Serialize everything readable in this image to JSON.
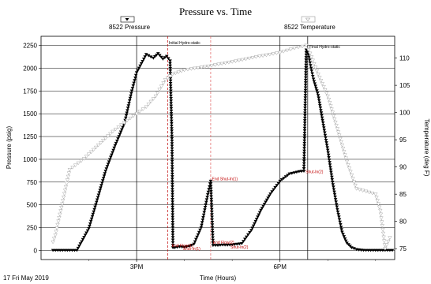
{
  "chart_data": {
    "type": "line",
    "title": "Pressure vs. Time",
    "xlabel": "Time (Hours)",
    "ylabel_left": "Pressure (psig)",
    "ylabel_right": "Temperature (deg F)",
    "date_label": "17 Fri May 2019",
    "x_ticks": [
      {
        "value": 15,
        "label": "3PM"
      },
      {
        "value": 18,
        "label": "6PM"
      }
    ],
    "xlim": [
      13.0,
      20.4
    ],
    "ylim_left": [
      -100,
      2350
    ],
    "ylim_right": [
      73,
      114
    ],
    "y_left_ticks": [
      0,
      250,
      500,
      750,
      1000,
      1250,
      1500,
      1750,
      2000,
      2250
    ],
    "y_right_ticks": [
      75,
      80,
      85,
      90,
      95,
      100,
      105,
      110
    ],
    "grid": true,
    "legend_markers": [
      {
        "name": "8522 Pressure",
        "marker": "filled-down-triangle"
      },
      {
        "name": "8522 Temperature",
        "marker": "open-down-triangle"
      }
    ],
    "series": [
      {
        "name": "8522 Pressure",
        "axis": "left",
        "color": "#000000",
        "marker": "filled-down-triangle",
        "x": [
          13.25,
          13.35,
          13.55,
          13.75,
          14.0,
          14.35,
          14.55,
          14.75,
          14.9,
          15.0,
          15.1,
          15.2,
          15.35,
          15.45,
          15.55,
          15.63,
          15.7,
          15.74,
          15.76,
          15.8,
          15.9,
          16.0,
          16.1,
          16.2,
          16.35,
          16.5,
          16.55,
          16.6,
          16.7,
          16.8,
          16.9,
          16.95,
          17.0,
          17.2,
          17.4,
          17.6,
          17.8,
          18.0,
          18.2,
          18.4,
          18.5,
          18.55,
          18.6,
          18.65,
          18.7,
          18.8,
          18.9,
          19.0,
          19.1,
          19.2,
          19.3,
          19.4,
          19.5,
          19.6,
          19.7,
          19.8,
          20.0,
          20.2,
          20.35
        ],
        "y": [
          0,
          0,
          0,
          0,
          240,
          870,
          1150,
          1400,
          1750,
          1950,
          2050,
          2150,
          2110,
          2160,
          2100,
          2130,
          2080,
          1200,
          30,
          30,
          40,
          35,
          45,
          70,
          250,
          640,
          760,
          55,
          55,
          60,
          58,
          60,
          62,
          75,
          220,
          440,
          620,
          760,
          840,
          865,
          870,
          2200,
          2150,
          2000,
          1880,
          1700,
          1400,
          1100,
          750,
          450,
          200,
          80,
          30,
          10,
          3,
          0,
          0,
          0,
          0
        ]
      },
      {
        "name": "8522 Temperature",
        "axis": "right",
        "color": "#a8a8a8",
        "marker": "open-down-triangle",
        "x": [
          13.25,
          13.3,
          13.6,
          13.9,
          14.2,
          14.5,
          14.8,
          15.0,
          15.2,
          15.4,
          15.6,
          15.75,
          16.0,
          16.5,
          17.0,
          17.5,
          18.0,
          18.3,
          18.55,
          18.6,
          18.8,
          19.0,
          19.2,
          19.4,
          19.6,
          19.8,
          20.0,
          20.1,
          20.15,
          20.2,
          20.3
        ],
        "y": [
          76.2,
          77.5,
          89.5,
          91.5,
          94.0,
          96.5,
          98.5,
          99.8,
          101.0,
          103.0,
          106.0,
          107.0,
          107.8,
          108.5,
          109.3,
          110.2,
          111.0,
          111.8,
          112.3,
          111.5,
          107.0,
          103.0,
          97.0,
          91.0,
          86.0,
          85.5,
          85.0,
          82.0,
          78.5,
          75.0,
          77.0
        ]
      }
    ],
    "vertical_lines": [
      {
        "x": 15.0,
        "color": "#000000",
        "style": "solid"
      },
      {
        "x": 15.65,
        "color": "#c00000",
        "style": "dashed"
      },
      {
        "x": 16.55,
        "color": "#e06060",
        "style": "dashed"
      },
      {
        "x": 18.0,
        "color": "#000000",
        "style": "solid"
      },
      {
        "x": 18.58,
        "color": "#000000",
        "style": "solid"
      }
    ],
    "annotations": [
      {
        "text": "Initial Hydro-static",
        "x": 15.66,
        "y": 2265,
        "color": "#000000"
      },
      {
        "text": "Final Hydro-static",
        "x": 18.6,
        "y": 2220,
        "color": "#000000"
      },
      {
        "text": "End Shut-In(1)",
        "x": 16.56,
        "y": 770,
        "color": "#c00000"
      },
      {
        "text": "Shut-In(2)",
        "x": 18.52,
        "y": 850,
        "color": "#c00000"
      },
      {
        "text": "End Flow(1)",
        "x": 15.72,
        "y": 40,
        "color": "#c00000"
      },
      {
        "text": "Shut-In(1)",
        "x": 15.95,
        "y": 5,
        "color": "#c00000"
      },
      {
        "text": "End Flow(2)",
        "x": 16.58,
        "y": 75,
        "color": "#c00000"
      },
      {
        "text": "Shut-In(2)",
        "x": 16.95,
        "y": 20,
        "color": "#c00000"
      }
    ]
  }
}
